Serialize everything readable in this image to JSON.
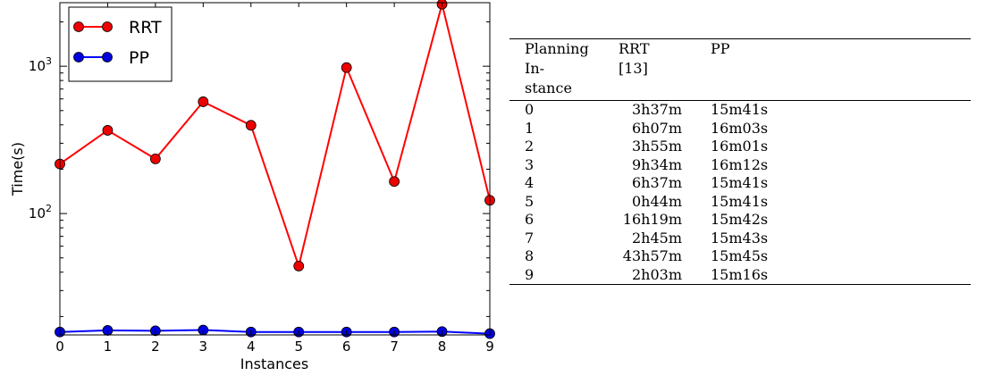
{
  "chart_data": {
    "type": "line",
    "x": [
      0,
      1,
      2,
      3,
      4,
      5,
      6,
      7,
      8,
      9
    ],
    "xlabel": "Instances",
    "ylabel": "Time(s)",
    "yscale": "log",
    "xlim": [
      0,
      9
    ],
    "ylim": [
      15,
      2700
    ],
    "xticks": [
      "0",
      "1",
      "2",
      "3",
      "4",
      "5",
      "6",
      "7",
      "8",
      "9"
    ],
    "yticks": [
      {
        "value": 100,
        "base": "10",
        "exp": "2"
      },
      {
        "value": 1000,
        "base": "10",
        "exp": "3"
      }
    ],
    "grid": false,
    "legend_position": "top-left",
    "series": [
      {
        "name": "RRT",
        "color": "#ff0000",
        "marker_color": "#ee0000",
        "values": [
          217,
          367,
          235,
          574,
          397,
          44,
          979,
          165,
          2637,
          123
        ]
      },
      {
        "name": "PP",
        "color": "#0000ff",
        "marker_color": "#0000dd",
        "values": [
          15.7,
          16.1,
          16.0,
          16.2,
          15.7,
          15.7,
          15.7,
          15.7,
          15.8,
          15.3
        ]
      }
    ]
  },
  "table": {
    "headers": [
      "Planning Instance",
      "RRT [13]",
      "PP"
    ],
    "header_lines": [
      [
        "Planning",
        "In-",
        "stance"
      ],
      [
        "RRT",
        "[13]"
      ],
      [
        "PP"
      ]
    ],
    "rows": [
      [
        "0",
        "3h37m",
        "15m41s"
      ],
      [
        "1",
        "6h07m",
        "16m03s"
      ],
      [
        "2",
        "3h55m",
        "16m01s"
      ],
      [
        "3",
        "9h34m",
        "16m12s"
      ],
      [
        "4",
        "6h37m",
        "15m41s"
      ],
      [
        "5",
        "0h44m",
        "15m41s"
      ],
      [
        "6",
        "16h19m",
        "15m42s"
      ],
      [
        "7",
        "2h45m",
        "15m43s"
      ],
      [
        "8",
        "43h57m",
        "15m45s"
      ],
      [
        "9",
        "2h03m",
        "15m16s"
      ]
    ]
  }
}
